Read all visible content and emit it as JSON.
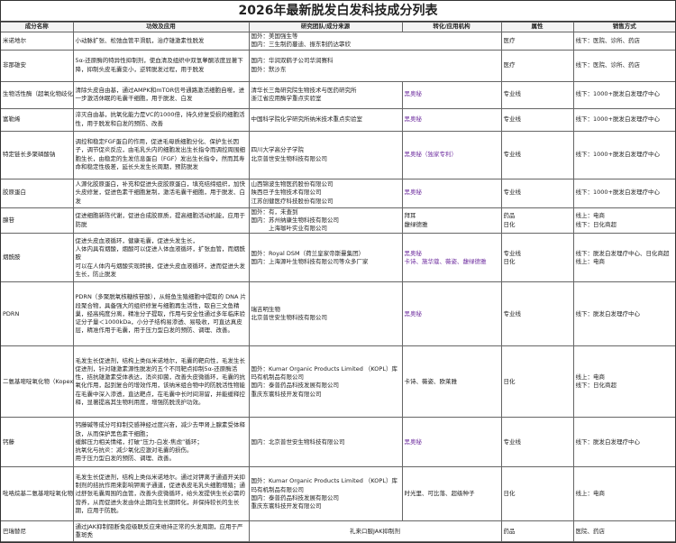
{
  "title": "2026年最新脱发白发科技成分列表",
  "headers": [
    "成分名称",
    "功效及应用",
    "研究团队/成分来源",
    "转化/应用机构",
    "属性",
    "销售方式"
  ],
  "accent_purple": "#7030a0",
  "rows": [
    {
      "name": "米诺地尔",
      "effect": "小动脉扩张、松弛血管平滑肌，治疗雄激素性脱发",
      "source": "国外：美国强生等\n国内：三生制药蔓迪、振东制药达霏欣",
      "org": "",
      "source_spans_org": true,
      "attr": "医疗",
      "sales": "线下：医院、诊所、药店"
    },
    {
      "name": "非那雄安",
      "effect": "5α-还原酶的特异性抑制剂，使血清及组织中双氢睾酮浓度显著下降，抑制头皮毛囊变小，逆转脱发过程，用于脱发",
      "source": "国内：华润双鹤子公司华润赛科\n国外：默沙东",
      "org": "",
      "source_spans_org": true,
      "attr": "医疗",
      "sales": "线下：医院、诊所、药店"
    },
    {
      "name": "生物活性酶（超氧化物歧化酶）",
      "effect": "清除头皮自由基，通过AMPK和mTOR信号通路激活细胞自噬，进一步激活休眠的毛囊干细胞，用于脱发、白发",
      "source": "清华长三角研究院生物技术与医药研究所\n浙江省应用酶学重点实验室",
      "org": "黑奥秘",
      "org_purple": true,
      "attr": "专业线",
      "sales": "线下：1000+脱发白发理疗中心"
    },
    {
      "name": "富勒烯",
      "effect": "淬灭自由基，抗氧化能力是VC的1000倍，持久修复受损的细胞活性，用于脱发和白发的预防、改善",
      "source": "中国科学院化学研究所纳米技术重点实验室",
      "org": "黑奥秘",
      "org_purple": true,
      "attr": "专业线",
      "sales": "线下：1000+脱发白发理疗中心"
    },
    {
      "name": "特定链长多聚磷酸钠",
      "effect": "调控和稳定FGF蛋白的作用，促进毛母质细胞分化、保护生长因子，调节促炎反应，由毛乳头内的细胞发出生长指令而调控周围细胞生长，由稳定的生发信息蛋白（FGF）发出生长指令，然而其寿命和稳定性极差，延长头发生长周期，预防脱发",
      "source": "四川大学高分子学院\n北京普世安生物科技有限公司",
      "org": "黑奥秘（独家专利）",
      "org_purple": true,
      "attr": "专业线",
      "sales": "线下：1000+脱发白发理疗中心"
    },
    {
      "name": "胶原蛋白",
      "effect": "人源化胶原蛋白，补充和促进头皮胶原蛋白，填充结缔组织，加快头皮修复，促进色素干细胞复制，激活毛囊干细胞，用于脱发、白发",
      "source": "山西锦波生物医药股份有限公司\n陕西巨子生物技术有限公司\n江苏创健医疗科技股份有限公司",
      "org": "黑奥秘",
      "org_purple": true,
      "attr": "专业线",
      "sales": "线下：1000+脱发白发理疗中心"
    },
    {
      "name": "腺苷",
      "effect": "促进细胞新陈代谢，促进合成胶原质，提高细胞活动机能，应用于防脱",
      "source": "国外：有，未查到\n国内：苏州纳康生物科技有限公司\n　　　上海珈叶实业有限公司",
      "org": "拜耳\n馥绿德雅",
      "org_purple": false,
      "attr": "药品\n日化",
      "sales": "线上：电商\n线下：日化商超"
    },
    {
      "name": "烟酰胺",
      "effect": "促进头皮血液循环，健康毛囊，促进头发生长，\n人体内具有烟酸，烟酸可以促进人体血液循环，扩张血管，而烟酰胺\n可以在人体内与烟酸实现转换，促进头皮血液循环，进而促进头发生长，防止脱发",
      "source": "国外：Royal DSM（荷兰皇家帝斯曼集团）\n国内：上海源叶生物科技有限公司等众多厂家",
      "org": "黑奥秘\n卡诗、施华蔻、薇姿、馥绿德雅",
      "org_purple": true,
      "attr": "专业线\n日化",
      "sales": "线下：脱发白发理疗中心、日化商超\n线上：电商"
    },
    {
      "name": "PDRN",
      "effect": "PDRN（多聚脱氧核糖核苷酸），从鲑鱼生殖细胞中提取的 DNA 片段聚合物，具备强大的组织修复与细胞再生活性，取自三文鱼精巢，经高纯度分离，精准分子提取，作用与安全性通过多年临床验证分子量＜1000kDa，小分子结构易渗透、易吸收，可直达真皮层，精准作用于毛囊，用于压力型白发的预防、调理、改善。",
      "source": "瑞吉明生物\n北京普世安生物科技有限公司",
      "org": "黑奥秘",
      "org_purple": true,
      "attr": "专业线",
      "sales": "线下：脱发白发理疗中心"
    },
    {
      "name": "二氨基嘧啶氧化物（Kopexil）",
      "effect": "毛发生长促进剂，结构上类似米诺地尔，毛囊的靶向性，毛发生长促进剂，针对雄激素源性脱发的五个不同靶点抑制5α-还原酶活性，拮抗雄激素受体表达，消炎抑菌，改善头皮微循环，毛囊的抗氧化作用，起到复合的增效作用，该纳米组合物中的防脱活性物能在毛囊中深入渗透，直达靶点，在毛囊中长时间滞留，并能缓释控释，显著提高其生物利用度，增强防脱洗护功效。",
      "source": "国外：Kumar Organic Products Limited （KOPL）库玛有机制品有限公司\n国内：泰普药品科技发展有限公司\n重庆东寰科技开发有限公司",
      "org": "卡诗、薇姿、欧莱雅",
      "org_purple": false,
      "attr": "日化",
      "sales": "线上：电商\n线下：日化商超"
    },
    {
      "name": "钙藤",
      "effect": "钙藤碱等成分可抑制交感神经过度兴奋，减少去甲肾上腺素受体释放，从而保护黑色素干细胞；\n缓解压力相关情绪，打破“压力-白发-焦虑”循环；\n抗氧化与抗炎：减少氧化应激对毛囊的损伤。\n用于压力型白发的预防、调理、改善。",
      "source": "国内：北京普世安生物科技有限公司",
      "org": "黑奥秘",
      "org_purple": true,
      "attr": "专业线",
      "sales": "线下：脱发白发理疗中心"
    },
    {
      "name": "吡咯烷基二氨基嘧啶氧化物（Kop",
      "effect": "毛发生长促进剂，结构上类似米诺地尔。通过对钾离子通道开关抑制剂的拮抗作用来影响钾离子通道，促进表皮毛乳头细胞增殖；通过舒张毛囊周围的血管，改善头皮微循环，给头发提供生长必需的营养，从而促进头发由休止期向生长期转化，并保持较长的生长期，应用于防脱。",
      "source": "国外：Kumar Organic Products Limited （KOPL）库玛有机制品有限公司\n国内：泰普药品科技发展有限公司\n重庆东寰科技开发有限公司",
      "org": "时光里、可比落、超级种子",
      "org_purple": false,
      "attr": "日化",
      "sales": "线上：电商"
    },
    {
      "name": "巴瑞替尼",
      "effect": "通过JAK抑制阻断免疫级联反应来维持正常的头发周期，应用于严重斑秃",
      "source": "礼来口服JAK抑制剂",
      "org": "",
      "source_spans_org": true,
      "source_center": true,
      "attr": "药品",
      "sales": "医院、药店"
    }
  ]
}
